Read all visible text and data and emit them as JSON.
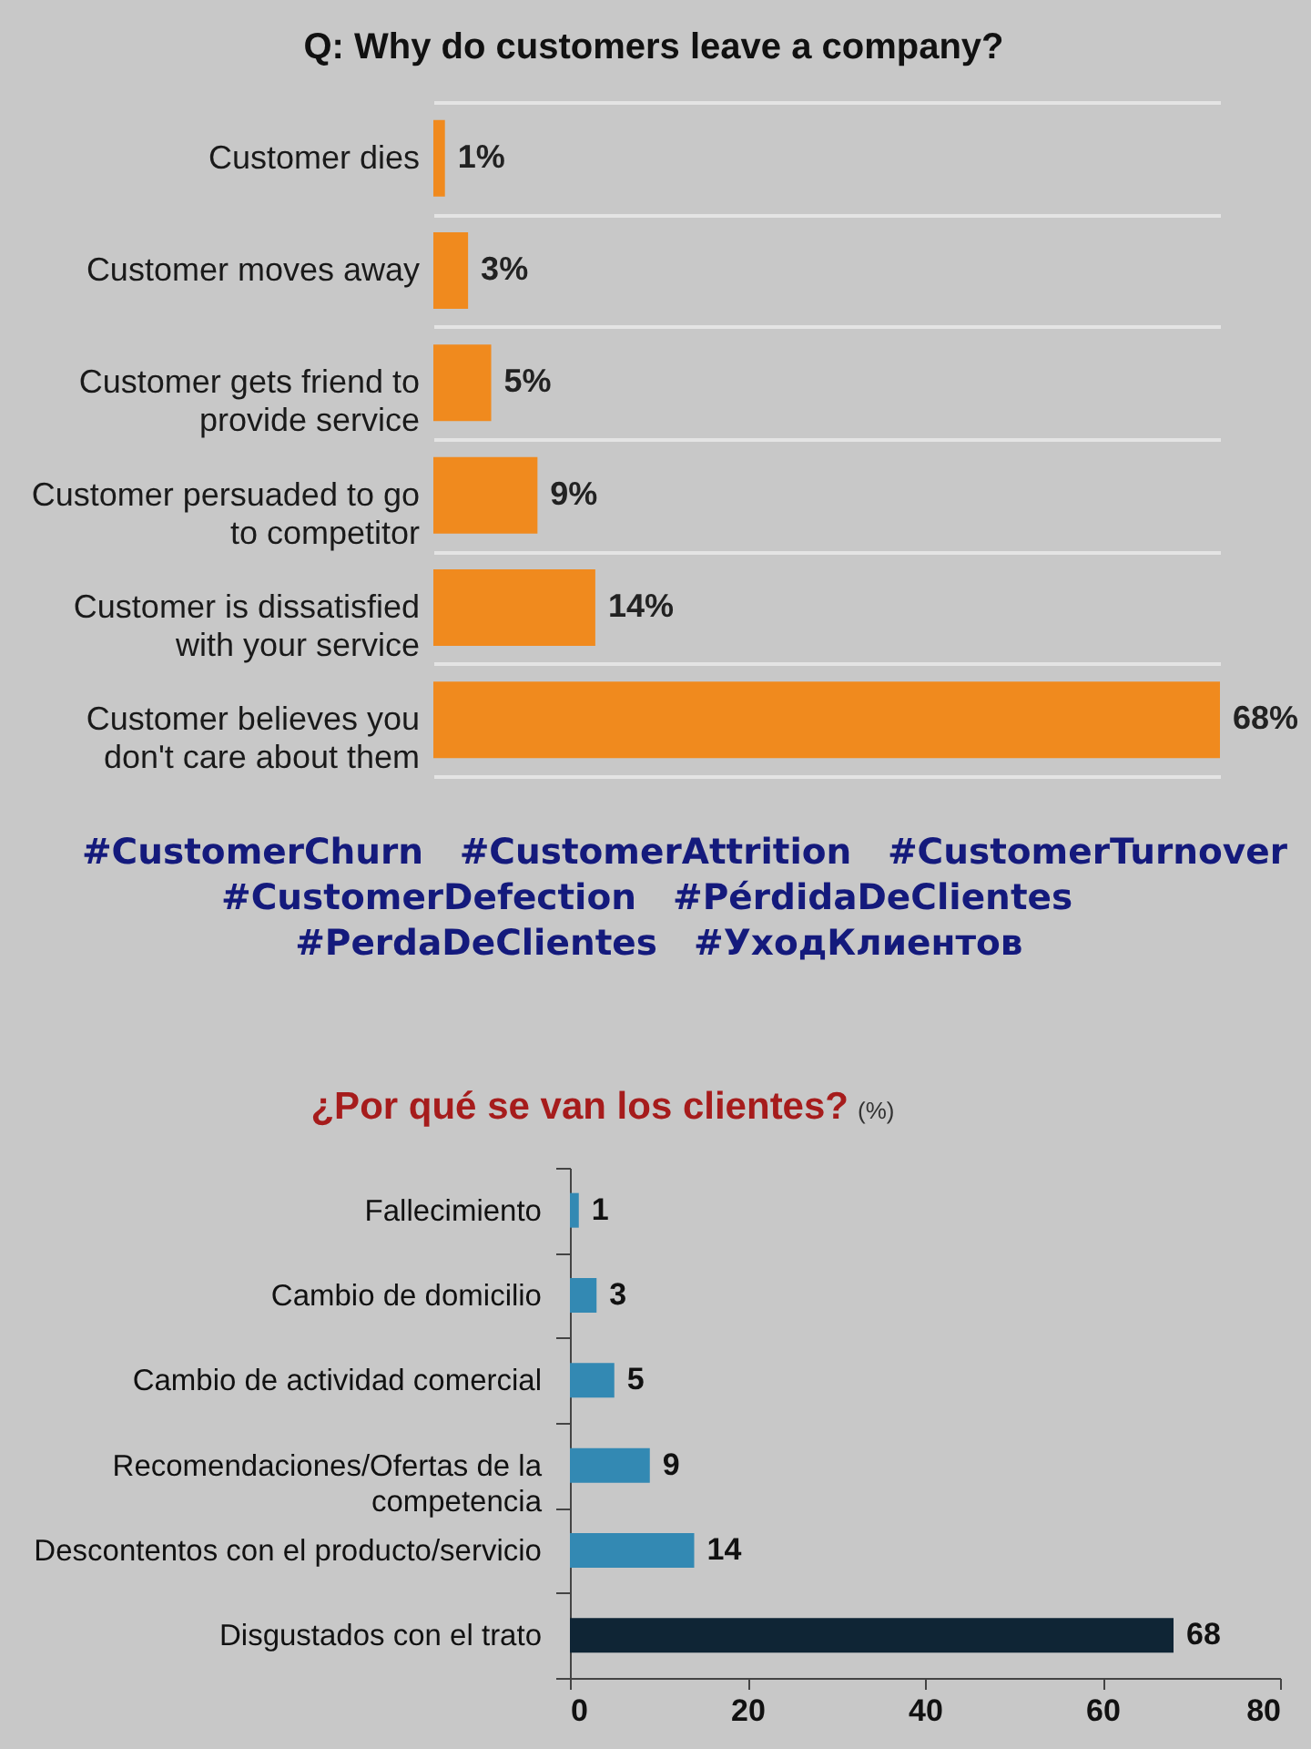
{
  "chart_data": [
    {
      "type": "bar",
      "orientation": "horizontal",
      "title": "Q: Why do customers leave a company?",
      "categories": [
        "Customer dies",
        "Customer moves away",
        "Customer gets friend to provide service",
        "Customer persuaded to go to competitor",
        "Customer is dissatisfied with your service",
        "Customer believes you don't care about them"
      ],
      "values": [
        1,
        3,
        5,
        9,
        14,
        68
      ],
      "value_labels": [
        "1%",
        "3%",
        "5%",
        "9%",
        "14%",
        "68%"
      ],
      "color": "#f08a1e",
      "grid": "y"
    },
    {
      "type": "other",
      "annotations": [
        "#CustomerChurn",
        "#CustomerAttrition",
        "#CustomerTurnover",
        "#CustomerDefection",
        "#PérdidaDeClientes",
        "#PerdaDeClientes",
        "#УходКлиентов"
      ]
    },
    {
      "type": "bar",
      "orientation": "horizontal",
      "title": "¿Por qué se van los clientes?",
      "subtitle": "(%)",
      "categories": [
        "Fallecimiento",
        "Cambio de domicilio",
        "Cambio de actividad comercial",
        "Recomendaciones/Ofertas de la competencia",
        "Descontentos con el producto/servicio",
        "Disgustados con el trato"
      ],
      "values": [
        1,
        3,
        5,
        9,
        14,
        68
      ],
      "colors": [
        "#3389b3",
        "#3389b3",
        "#3389b3",
        "#3389b3",
        "#3389b3",
        "#0f2535"
      ],
      "xlim": [
        0,
        80
      ],
      "xticks": [
        0,
        20,
        40,
        60,
        80
      ],
      "data_labels": true
    }
  ]
}
